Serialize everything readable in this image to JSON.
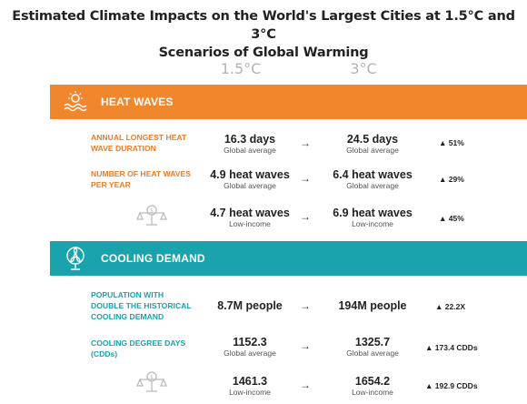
{
  "title_line1": "Estimated Climate Impacts on the World's Largest Cities at 1.5°C and 3°C",
  "title_line2": "Scenarios of Global Warming",
  "columns": {
    "low": "1.5°C",
    "high": "3°C"
  },
  "heat": {
    "label": "HEAT WAVES",
    "color": "#f0872c",
    "rows": [
      {
        "label": "ANNUAL LONGEST HEAT WAVE DURATION",
        "v1": "16.3 days",
        "s1": "Global average",
        "v2": "24.5 days",
        "s2": "Global average",
        "change": "▲ 51%"
      },
      {
        "label": "NUMBER OF HEAT WAVES PER YEAR",
        "v1": "4.9 heat waves",
        "s1": "Global average",
        "v2": "6.4 heat waves",
        "s2": "Global average",
        "change": "▲ 29%"
      },
      {
        "label": "",
        "v1": "4.7 heat waves",
        "s1": "Low-income",
        "v2": "6.9 heat waves",
        "s2": "Low-income",
        "change": "▲ 45%"
      }
    ]
  },
  "cool": {
    "label": "COOLING DEMAND",
    "color": "#1aa3ad",
    "rows": [
      {
        "label": "POPULATION WITH DOUBLE THE HISTORICAL COOLING DEMAND",
        "v1": "8.7M people",
        "s1": "",
        "v2": "194M people",
        "s2": "",
        "change": "▲ 22.2X"
      },
      {
        "label": "COOLING DEGREE DAYS (CDDs)",
        "v1": "1152.3",
        "s1": "Global average",
        "v2": "1325.7",
        "s2": "Global average",
        "change": "▲ 173.4 CDDs"
      },
      {
        "label": "",
        "v1": "1461.3",
        "s1": "Low-income",
        "v2": "1654.2",
        "s2": "Low-income",
        "change": "▲ 192.9 CDDs"
      }
    ]
  },
  "arrow": "→",
  "icons": {
    "heat": "heat-wave-icon",
    "cool": "fan-icon",
    "scale": "balance-scale-icon"
  }
}
